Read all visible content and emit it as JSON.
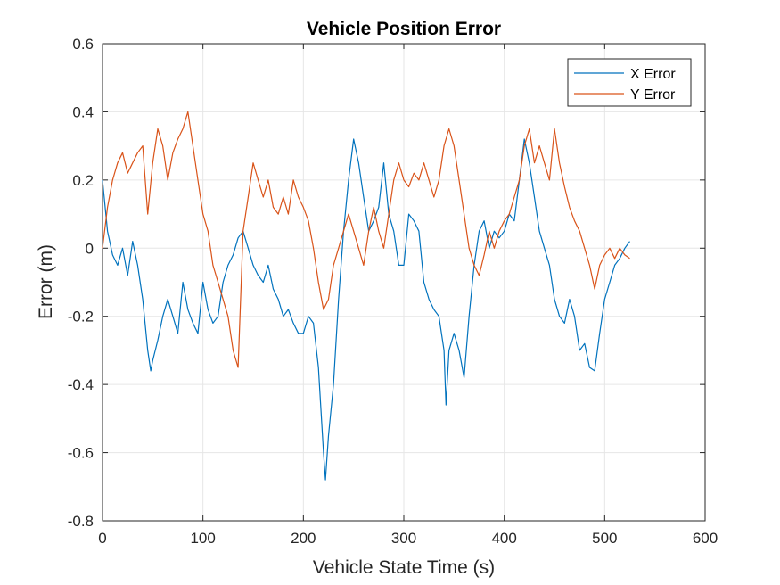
{
  "chart_data": {
    "type": "line",
    "title": "Vehicle Position Error",
    "xlabel": "Vehicle State Time (s)",
    "ylabel": "Error (m)",
    "xlim": [
      0,
      600
    ],
    "ylim": [
      -0.8,
      0.6
    ],
    "xticks": [
      0,
      100,
      200,
      300,
      400,
      500,
      600
    ],
    "xtick_labels": [
      "0",
      "100",
      "200",
      "300",
      "400",
      "500",
      "600"
    ],
    "yticks": [
      -0.8,
      -0.6,
      -0.4,
      -0.2,
      0,
      0.2,
      0.4,
      0.6
    ],
    "ytick_labels": [
      "-0.8",
      "-0.6",
      "-0.4",
      "-0.2",
      "0",
      "0.2",
      "0.4",
      "0.6"
    ],
    "grid": true,
    "legend_position": "top-right",
    "colors": {
      "x_error": "#0072BD",
      "y_error": "#D95319",
      "grid": "#e6e6e6",
      "axis": "#262626"
    },
    "series": [
      {
        "name": "X Error",
        "color": "#0072BD",
        "x": [
          0,
          5,
          10,
          15,
          20,
          25,
          30,
          35,
          40,
          45,
          48,
          50,
          55,
          60,
          65,
          70,
          75,
          80,
          85,
          90,
          95,
          100,
          105,
          110,
          115,
          120,
          125,
          130,
          135,
          140,
          145,
          150,
          155,
          160,
          165,
          170,
          175,
          180,
          185,
          190,
          195,
          200,
          205,
          210,
          215,
          220,
          222,
          225,
          230,
          235,
          240,
          245,
          250,
          255,
          260,
          265,
          270,
          275,
          280,
          285,
          290,
          295,
          300,
          305,
          310,
          315,
          320,
          325,
          330,
          335,
          340,
          342,
          345,
          350,
          355,
          360,
          365,
          370,
          375,
          380,
          385,
          390,
          395,
          400,
          405,
          410,
          415,
          420,
          425,
          430,
          435,
          440,
          445,
          450,
          455,
          460,
          465,
          470,
          475,
          480,
          485,
          490,
          495,
          500,
          505,
          510,
          515,
          520,
          525
        ],
        "y": [
          0.2,
          0.05,
          -0.02,
          -0.05,
          0.0,
          -0.08,
          0.02,
          -0.05,
          -0.15,
          -0.3,
          -0.36,
          -0.33,
          -0.27,
          -0.2,
          -0.15,
          -0.2,
          -0.25,
          -0.1,
          -0.18,
          -0.22,
          -0.25,
          -0.1,
          -0.18,
          -0.22,
          -0.2,
          -0.1,
          -0.05,
          -0.02,
          0.03,
          0.05,
          0.0,
          -0.05,
          -0.08,
          -0.1,
          -0.05,
          -0.12,
          -0.15,
          -0.2,
          -0.18,
          -0.22,
          -0.25,
          -0.25,
          -0.2,
          -0.22,
          -0.35,
          -0.6,
          -0.68,
          -0.55,
          -0.4,
          -0.15,
          0.05,
          0.2,
          0.32,
          0.25,
          0.15,
          0.05,
          0.08,
          0.12,
          0.25,
          0.1,
          0.05,
          -0.05,
          -0.05,
          0.1,
          0.08,
          0.05,
          -0.1,
          -0.15,
          -0.18,
          -0.2,
          -0.3,
          -0.46,
          -0.3,
          -0.25,
          -0.3,
          -0.38,
          -0.2,
          -0.05,
          0.05,
          0.08,
          0.0,
          0.05,
          0.03,
          0.05,
          0.1,
          0.08,
          0.2,
          0.32,
          0.25,
          0.15,
          0.05,
          0.0,
          -0.05,
          -0.15,
          -0.2,
          -0.22,
          -0.15,
          -0.2,
          -0.3,
          -0.28,
          -0.35,
          -0.36,
          -0.25,
          -0.15,
          -0.1,
          -0.05,
          -0.03,
          0.0,
          0.02
        ]
      },
      {
        "name": "Y Error",
        "color": "#D95319",
        "x": [
          0,
          5,
          10,
          15,
          20,
          25,
          30,
          35,
          40,
          45,
          50,
          55,
          60,
          65,
          70,
          75,
          80,
          85,
          90,
          95,
          100,
          105,
          110,
          115,
          120,
          125,
          130,
          135,
          140,
          145,
          150,
          155,
          160,
          165,
          170,
          175,
          180,
          185,
          190,
          195,
          200,
          205,
          210,
          215,
          220,
          225,
          230,
          235,
          240,
          245,
          250,
          255,
          260,
          265,
          270,
          275,
          280,
          285,
          290,
          295,
          300,
          305,
          310,
          315,
          320,
          325,
          330,
          335,
          340,
          345,
          350,
          355,
          360,
          365,
          370,
          375,
          380,
          385,
          390,
          395,
          400,
          405,
          410,
          415,
          420,
          425,
          430,
          435,
          440,
          445,
          450,
          455,
          460,
          465,
          470,
          475,
          480,
          485,
          490,
          495,
          500,
          505,
          510,
          515,
          520,
          525
        ],
        "y": [
          0.0,
          0.12,
          0.2,
          0.25,
          0.28,
          0.22,
          0.25,
          0.28,
          0.3,
          0.1,
          0.25,
          0.35,
          0.3,
          0.2,
          0.28,
          0.32,
          0.35,
          0.4,
          0.3,
          0.2,
          0.1,
          0.05,
          -0.05,
          -0.1,
          -0.15,
          -0.2,
          -0.3,
          -0.35,
          0.05,
          0.15,
          0.25,
          0.2,
          0.15,
          0.2,
          0.12,
          0.1,
          0.15,
          0.1,
          0.2,
          0.15,
          0.12,
          0.08,
          0.0,
          -0.1,
          -0.18,
          -0.15,
          -0.05,
          0.0,
          0.05,
          0.1,
          0.05,
          0.0,
          -0.05,
          0.05,
          0.12,
          0.05,
          0.0,
          0.1,
          0.2,
          0.25,
          0.2,
          0.18,
          0.22,
          0.2,
          0.25,
          0.2,
          0.15,
          0.2,
          0.3,
          0.35,
          0.3,
          0.2,
          0.1,
          0.0,
          -0.05,
          -0.08,
          -0.02,
          0.05,
          0.0,
          0.05,
          0.08,
          0.1,
          0.15,
          0.2,
          0.3,
          0.35,
          0.25,
          0.3,
          0.25,
          0.2,
          0.35,
          0.25,
          0.18,
          0.12,
          0.08,
          0.05,
          0.0,
          -0.05,
          -0.12,
          -0.05,
          -0.02,
          0.0,
          -0.03,
          0.0,
          -0.02,
          -0.03
        ]
      }
    ]
  }
}
